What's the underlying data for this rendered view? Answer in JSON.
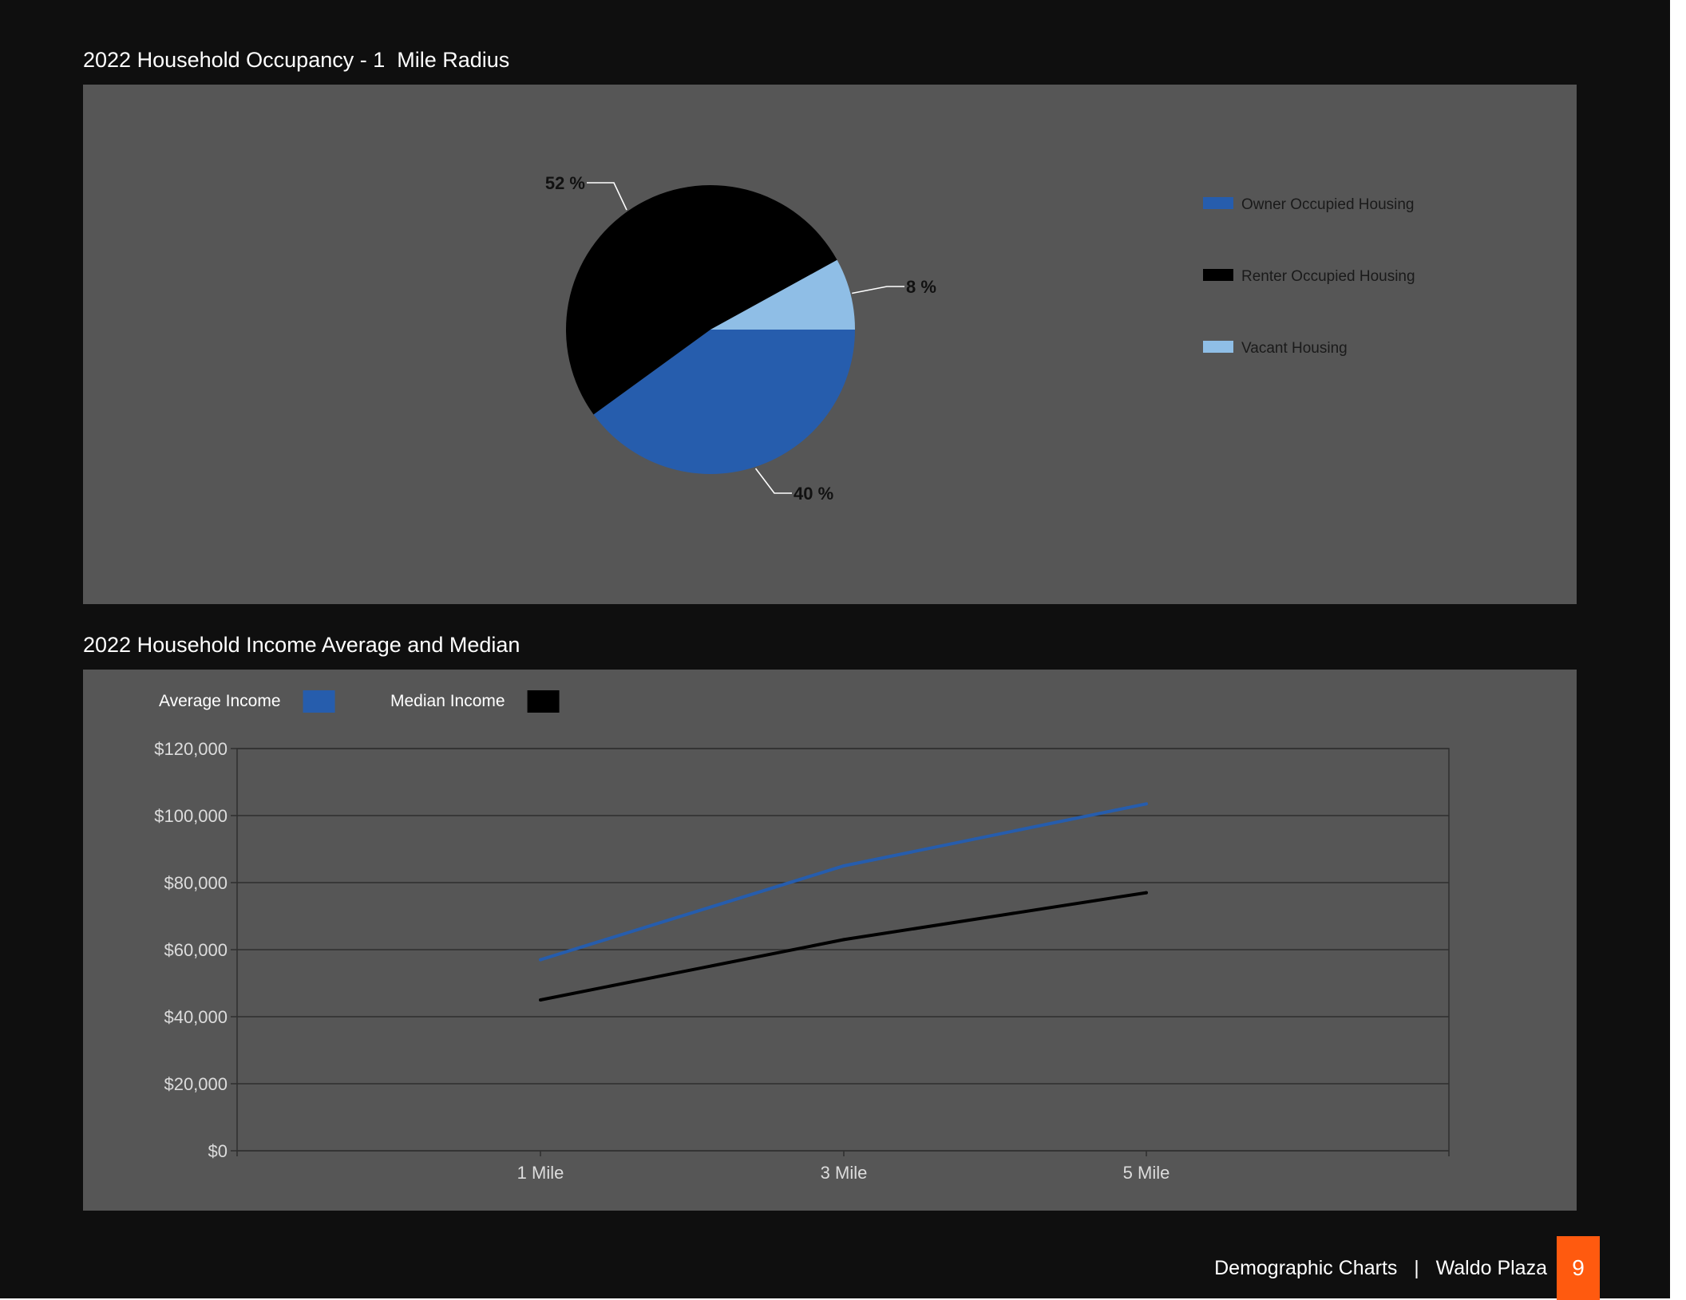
{
  "colors": {
    "page_bg": "#0f0f0f",
    "panel_bg": "#565656",
    "owner": "#265dad",
    "renter": "#000000",
    "vacant": "#8fbee6",
    "accent": "#ff5a0f"
  },
  "footer": {
    "section": "Demographic Charts",
    "separator": "|",
    "property": "Waldo Plaza",
    "page_number": "9"
  },
  "chart_data": [
    {
      "type": "pie",
      "title": "2022 Household Occupancy - 1  Mile Radius",
      "slices": [
        {
          "label": "Owner Occupied Housing",
          "value": 40,
          "display": "40 %",
          "color": "#265dad"
        },
        {
          "label": "Renter Occupied Housing",
          "value": 52,
          "display": "52 %",
          "color": "#000000"
        },
        {
          "label": "Vacant Housing",
          "value": 8,
          "display": "8 %",
          "color": "#8fbee6"
        }
      ],
      "legend_position": "right"
    },
    {
      "type": "line",
      "title": "2022 Household Income Average and Median",
      "categories": [
        "1 Mile",
        "3 Mile",
        "5 Mile"
      ],
      "series": [
        {
          "name": "Average Income",
          "values": [
            57000,
            85000,
            103500
          ],
          "color": "#265dad"
        },
        {
          "name": "Median Income",
          "values": [
            45000,
            63000,
            77000
          ],
          "color": "#000000"
        }
      ],
      "ylim": [
        0,
        120000
      ],
      "yticks": [
        0,
        20000,
        40000,
        60000,
        80000,
        100000,
        120000
      ],
      "ytick_labels": [
        "$0",
        "$20,000",
        "$40,000",
        "$60,000",
        "$80,000",
        "$100,000",
        "$120,000"
      ],
      "grid": true,
      "legend_position": "top-left"
    }
  ]
}
